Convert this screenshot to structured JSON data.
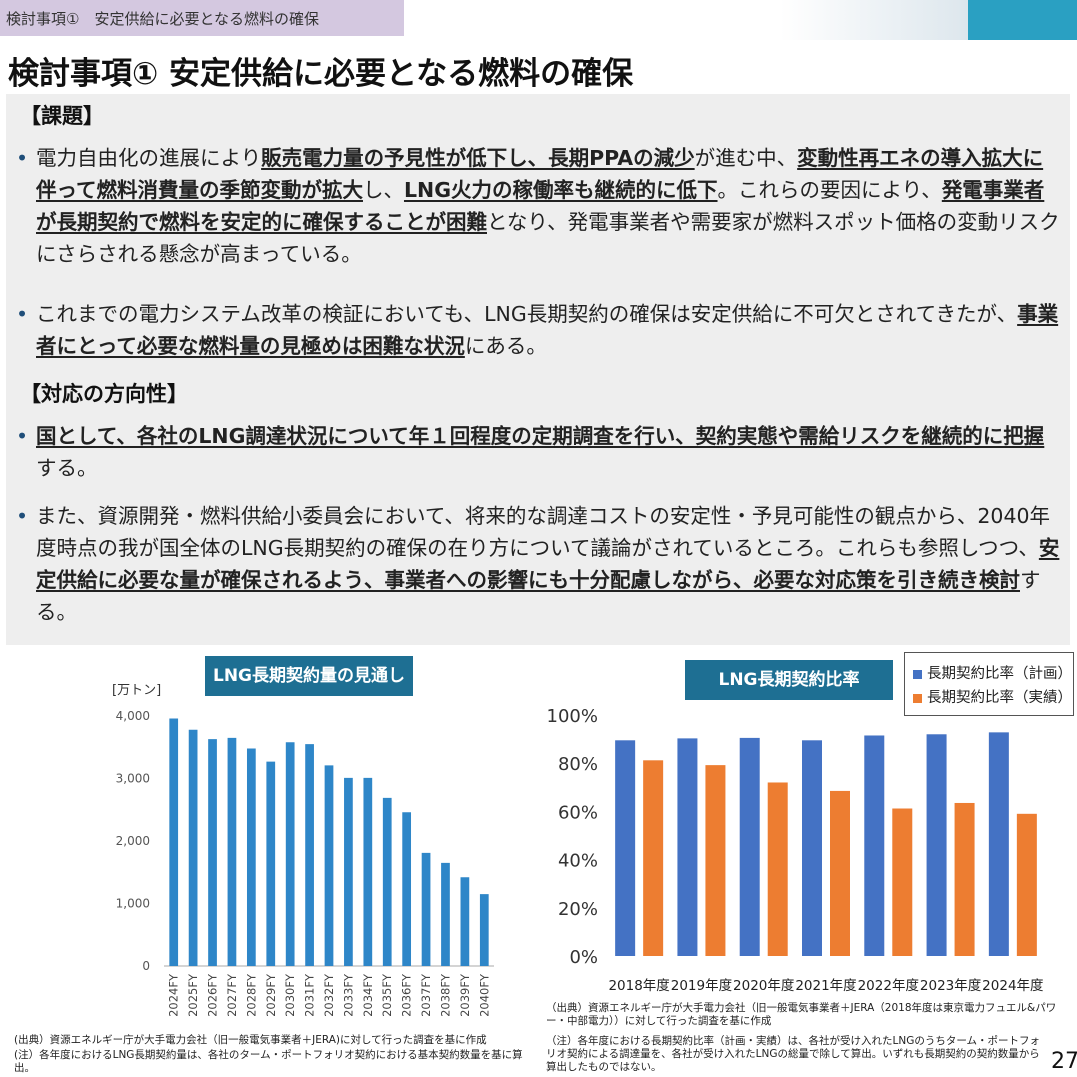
{
  "header": {
    "breadcrumb": "検討事項①　安定供給に必要となる燃料の確保",
    "title": "検討事項① 安定供給に必要となる燃料の確保"
  },
  "section_issue": {
    "heading": "【課題】",
    "bullet1": [
      {
        "t": "電力自由化の進展により"
      },
      {
        "t": "販売電力量の予見性が低下し、長期PPAの減少",
        "u": true
      },
      {
        "t": "が進む中、"
      },
      {
        "t": "変動性再エネの導入拡大に伴って燃料消費量の季節変動が拡大",
        "u": true
      },
      {
        "t": "し、"
      },
      {
        "t": "LNG火力の稼働率も継続的に低下",
        "u": true
      },
      {
        "t": "。これらの要因により、"
      },
      {
        "t": "発電事業者が長期契約で燃料を安定的に確保することが困難",
        "u": true
      },
      {
        "t": "となり、発電事業者や需要家が燃料スポット価格の変動リスクにさらされる懸念が高まっている。"
      }
    ],
    "bullet2": [
      {
        "t": "これまでの電力システム改革の検証においても、LNG長期契約の確保は安定供給に不可欠とされてきたが、"
      },
      {
        "t": "事業者にとって必要な燃料量の見極めは困難な状況",
        "u": true
      },
      {
        "t": "にある。"
      }
    ]
  },
  "section_direction": {
    "heading": "【対応の方向性】",
    "bullet1": [
      {
        "t": "国として、各社のLNG調達状況について年１回程度の定期調査を行い、契約実態や需給リスクを継続的に把握",
        "u": true
      },
      {
        "t": "する。"
      }
    ],
    "bullet2": [
      {
        "t": "また、資源開発・燃料供給小委員会において、将来的な調達コストの安定性・予見可能性の観点から、2040年度時点の我が国全体のLNG長期契約の確保の在り方について議論がされているところ。これらも参照しつつ、"
      },
      {
        "t": "安定供給に必要な量が確保されるよう、事業者への影響にも十分配慮しながら、必要な対応策を引き続き検討",
        "u": true
      },
      {
        "t": "する。"
      }
    ]
  },
  "chart_data": [
    {
      "type": "bar",
      "title": "LNG長期契約量の見通し",
      "ylabel": "[万トン]",
      "ylim": [
        0,
        4000
      ],
      "yticks": [
        "0",
        "1,000",
        "2,000",
        "3,000",
        "4,000"
      ],
      "categories": [
        "2024FY",
        "2025FY",
        "2026FY",
        "2027FY",
        "2028FY",
        "2029FY",
        "2030FY",
        "2031FY",
        "2032FY",
        "2033FY",
        "2034FY",
        "2035FY",
        "2036FY",
        "2037FY",
        "2038FY",
        "2039FY",
        "2040FY"
      ],
      "values": [
        3960,
        3780,
        3630,
        3650,
        3480,
        3270,
        3580,
        3550,
        3210,
        3010,
        3010,
        2690,
        2460,
        1810,
        1650,
        1420,
        1150
      ],
      "color": "#2e86c8",
      "grid": false
    },
    {
      "type": "bar",
      "title": "LNG長期契約比率",
      "ylim": [
        0,
        100
      ],
      "yticks": [
        "0%",
        "20%",
        "40%",
        "60%",
        "80%",
        "100%"
      ],
      "categories": [
        "2018年度",
        "2019年度",
        "2020年度",
        "2021年度",
        "2022年度",
        "2023年度",
        "2024年度"
      ],
      "series": [
        {
          "name": "長期契約比率（計画）",
          "color": "#4472c4",
          "values": [
            89.5,
            90.3,
            90.5,
            89.5,
            91.5,
            92.0,
            92.8
          ]
        },
        {
          "name": "長期契約比率（実績）",
          "color": "#ed7d31",
          "values": [
            81.2,
            79.2,
            72.0,
            68.5,
            61.2,
            63.5,
            59.0
          ]
        }
      ],
      "legend": "top-right",
      "grid": false
    }
  ],
  "notes": {
    "left_source": "(出典）資源エネルギー庁が大手電力会社（旧一般電気事業者＋JERA)に対して行った調査を基に作成",
    "left_note": "(注）各年度におけるLNG長期契約量は、各社のターム・ポートフォリオ契約における基本契約数量を基に算出。",
    "right_source": "（出典）資源エネルギー庁が大手電力会社（旧一般電気事業者＋JERA（2018年度は東京電力フュエル&パワー・中部電力））に対して行った調査を基に作成",
    "right_note": "（注）各年度における長期契約比率（計画・実績）は、各社が受け入れたLNGのうちターム・ポートフォリオ契約による調達量を、各社が受け入れたLNGの総量で除して算出。いずれも長期契約の契約数量から算出したものではない。"
  },
  "page_number": "27",
  "colors": {
    "accent": "#1e6f93",
    "breadcrumb_bg": "#d4c8e0",
    "panel_bg": "#eeeeee"
  }
}
